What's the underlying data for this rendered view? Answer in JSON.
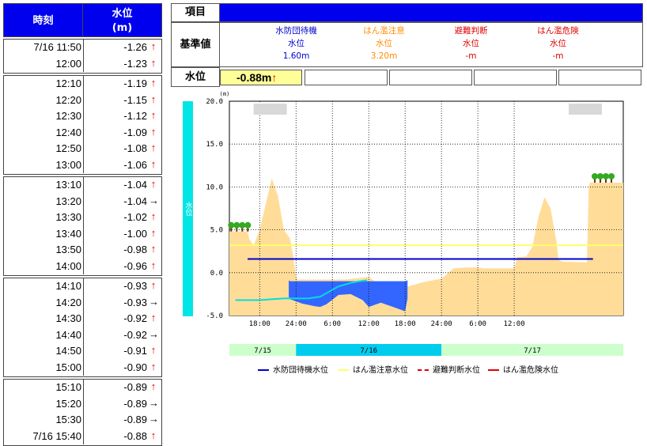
{
  "table": {
    "header_time": "時刻",
    "header_level_1": "水位",
    "header_level_2": "(m)",
    "groups": [
      [
        {
          "time": "7/16 11:50",
          "value": "-1.26",
          "arrow": "↑",
          "dir": "up"
        },
        {
          "time": "12:00",
          "value": "-1.23",
          "arrow": "↑",
          "dir": "up"
        }
      ],
      [
        {
          "time": "12:10",
          "value": "-1.19",
          "arrow": "↑",
          "dir": "up"
        },
        {
          "time": "12:20",
          "value": "-1.15",
          "arrow": "↑",
          "dir": "up"
        },
        {
          "time": "12:30",
          "value": "-1.12",
          "arrow": "↑",
          "dir": "up"
        },
        {
          "time": "12:40",
          "value": "-1.09",
          "arrow": "↑",
          "dir": "up"
        },
        {
          "time": "12:50",
          "value": "-1.08",
          "arrow": "↑",
          "dir": "up"
        },
        {
          "time": "13:00",
          "value": "-1.06",
          "arrow": "↑",
          "dir": "up"
        }
      ],
      [
        {
          "time": "13:10",
          "value": "-1.04",
          "arrow": "↑",
          "dir": "up"
        },
        {
          "time": "13:20",
          "value": "-1.04",
          "arrow": "→",
          "dir": "right"
        },
        {
          "time": "13:30",
          "value": "-1.02",
          "arrow": "↑",
          "dir": "up"
        },
        {
          "time": "13:40",
          "value": "-1.00",
          "arrow": "↑",
          "dir": "up"
        },
        {
          "time": "13:50",
          "value": "-0.98",
          "arrow": "↑",
          "dir": "up"
        },
        {
          "time": "14:00",
          "value": "-0.96",
          "arrow": "↑",
          "dir": "up"
        }
      ],
      [
        {
          "time": "14:10",
          "value": "-0.93",
          "arrow": "↑",
          "dir": "up"
        },
        {
          "time": "14:20",
          "value": "-0.93",
          "arrow": "→",
          "dir": "right"
        },
        {
          "time": "14:30",
          "value": "-0.92",
          "arrow": "↑",
          "dir": "up"
        },
        {
          "time": "14:40",
          "value": "-0.92",
          "arrow": "→",
          "dir": "right"
        },
        {
          "time": "14:50",
          "value": "-0.91",
          "arrow": "↑",
          "dir": "up"
        },
        {
          "time": "15:00",
          "value": "-0.90",
          "arrow": "↑",
          "dir": "up"
        }
      ],
      [
        {
          "time": "15:10",
          "value": "-0.89",
          "arrow": "↑",
          "dir": "up"
        },
        {
          "time": "15:20",
          "value": "-0.89",
          "arrow": "→",
          "dir": "right"
        },
        {
          "time": "15:30",
          "value": "-0.89",
          "arrow": "→",
          "dir": "right"
        },
        {
          "time": "7/16 15:40",
          "value": "-0.88",
          "arrow": "↑",
          "dir": "up"
        }
      ]
    ]
  },
  "reference": {
    "header_label": "項目",
    "base_label": "基準値",
    "level_label": "水位",
    "current_level": "-0.88m",
    "current_arrow": "↑",
    "columns": [
      {
        "name": "水防団待機",
        "sub": "水位",
        "value": "1.60m",
        "color": "#0000cc"
      },
      {
        "name": "はん濫注意",
        "sub": "水位",
        "value": "3.20m",
        "color": "#ff8c00"
      },
      {
        "name": "避難判断",
        "sub": "水位",
        "value": "-m",
        "color": "#e00000"
      },
      {
        "name": "はん濫危険",
        "sub": "水位",
        "value": "-m",
        "color": "#e00000"
      }
    ]
  },
  "chart_data": {
    "type": "area",
    "y_unit": "(m)",
    "y_axis_side_label": "水位",
    "ylim": [
      -5.0,
      20.0
    ],
    "y_ticks": [
      "20.0",
      "15.0",
      "10.0",
      "5.0",
      "0.0",
      "-5.0"
    ],
    "x_ticks": [
      "18:00",
      "24:00",
      "6:00",
      "12:00",
      "18:00",
      "24:00",
      "6:00",
      "12:00"
    ],
    "dates": [
      "7/15",
      "7/16",
      "7/17"
    ],
    "x_hours_range": [
      13,
      78
    ],
    "ground_profile": {
      "name": "terrain",
      "x_hours": [
        13,
        16,
        16.3,
        17,
        18,
        19,
        20,
        21,
        22,
        23,
        23.5,
        24,
        24.3,
        30,
        32,
        36,
        37,
        38,
        40,
        40.5,
        42,
        45,
        48,
        50,
        52,
        54,
        55,
        56,
        57,
        60,
        60.5,
        62,
        63,
        64,
        65,
        66,
        66.5,
        67,
        67.3,
        68,
        72,
        72.3,
        72.5,
        78
      ],
      "values": [
        4.8,
        4.8,
        3.9,
        3.2,
        5,
        8,
        11,
        9,
        5,
        4,
        2,
        -0.5,
        -0.8,
        -0.8,
        -0.8,
        -0.5,
        -1.0,
        -1.3,
        -1.3,
        -3.5,
        -1.7,
        -1.1,
        -0.7,
        0.5,
        0.6,
        0.6,
        0.5,
        0.5,
        0.5,
        0.5,
        1.8,
        1.9,
        3,
        6.5,
        8.8,
        7.5,
        5.5,
        3.5,
        1.5,
        1.3,
        1.2,
        10.0,
        10.5,
        10.5
      ]
    },
    "water_region": {
      "name": "river water",
      "x_hours": [
        22.8,
        23,
        25,
        27,
        28,
        29,
        31,
        33,
        35,
        36,
        38,
        40,
        42,
        42.4
      ],
      "top_values": [
        -0.9,
        -1.0,
        -1.0,
        -1.0,
        -1.0,
        -1.0,
        -1.0,
        -1.0,
        -1.0,
        -1.0,
        -1.0,
        -1.0,
        -1.0,
        -0.9
      ],
      "bottom_values": [
        -2.8,
        -3.1,
        -3.6,
        -3.9,
        -4.0,
        -3.7,
        -2.6,
        -2.5,
        -3.2,
        -4.0,
        -3.5,
        -4.0,
        -4.5,
        -3.0
      ]
    },
    "water_level_series": {
      "name": "水位",
      "x_hours": [
        14,
        16,
        18,
        20,
        22,
        24,
        26,
        28,
        29,
        30,
        31,
        32,
        33,
        34,
        35,
        35.7
      ],
      "values": [
        -3.2,
        -3.2,
        -3.2,
        -3.1,
        -3.0,
        -3.0,
        -3.0,
        -2.8,
        -2.4,
        -2.0,
        -1.6,
        -1.4,
        -1.2,
        -1.06,
        -0.95,
        -0.88
      ]
    },
    "thresholds": [
      {
        "name": "水防団待機水位",
        "value": 1.6,
        "x_range_hours": [
          16,
          73
        ],
        "color": "#0000cc"
      },
      {
        "name": "はん濫注意水位",
        "value": 3.2,
        "x_range_hours": [
          13,
          78
        ],
        "color": "#ffff66"
      },
      {
        "name": "避難判断水位",
        "value": null,
        "color": "#e00000"
      },
      {
        "name": "はん濫危険水位",
        "value": null,
        "color": "#e00000"
      }
    ],
    "legend": [
      {
        "label": "水防団待機水位",
        "color": "#0000cc",
        "style": "solid"
      },
      {
        "label": "はん濫注意水位",
        "color": "#ffff66",
        "style": "solid"
      },
      {
        "label": "避難判断水位",
        "color": "#e00000",
        "style": "dashed"
      },
      {
        "label": "はん濫危険水位",
        "color": "#e00000",
        "style": "solid"
      }
    ],
    "colors": {
      "terrain": "#ffdd99",
      "water": "#3366ff",
      "water_level": "#00dddd",
      "grid": "#000000",
      "side_bar": "#00e5e5",
      "date_band_light": "#ccffcc",
      "date_band_active": "#00ccee"
    }
  }
}
